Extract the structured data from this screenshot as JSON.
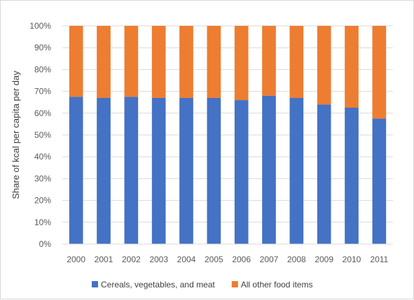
{
  "chart_data": {
    "type": "bar",
    "stacked": "percent",
    "title": "",
    "xlabel": "",
    "ylabel": "Share of kcal per capita per day",
    "categories": [
      "2000",
      "2001",
      "2002",
      "2003",
      "2004",
      "2005",
      "2006",
      "2007",
      "2008",
      "2009",
      "2010",
      "2011"
    ],
    "ylim": [
      0,
      100
    ],
    "yticks": [
      "0%",
      "10%",
      "20%",
      "30%",
      "40%",
      "50%",
      "60%",
      "70%",
      "80%",
      "90%",
      "100%"
    ],
    "series": [
      {
        "name": "Cereals, vegetables, and meat",
        "color": "#4472c4",
        "values": [
          67.5,
          67,
          67.5,
          67,
          67,
          67,
          66,
          68,
          67,
          64,
          62.5,
          57.5
        ]
      },
      {
        "name": "All other food items",
        "color": "#ed7d31",
        "values": [
          32.5,
          33,
          32.5,
          33,
          33,
          33,
          34,
          32,
          33,
          36,
          37.5,
          42.5
        ]
      }
    ],
    "grid": true,
    "legend": "bottom"
  }
}
